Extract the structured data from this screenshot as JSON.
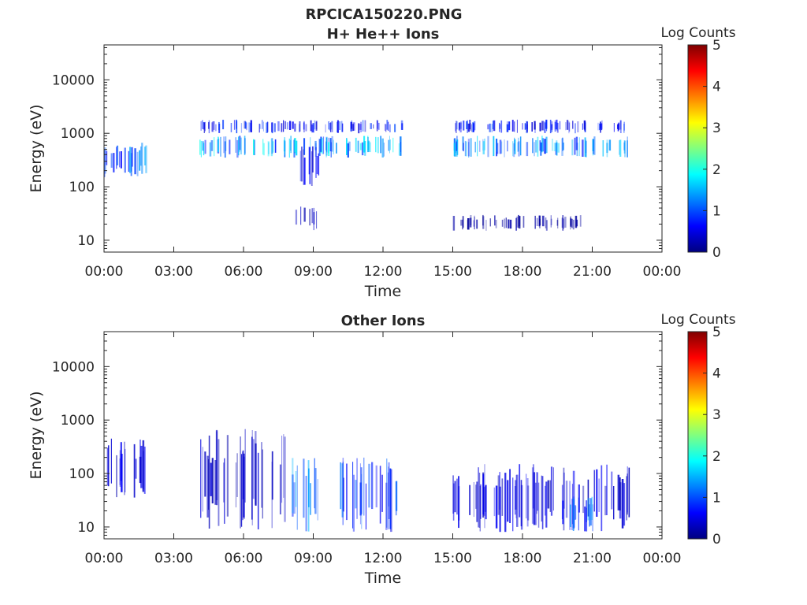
{
  "figure": {
    "title": "RPCICA150220.PNG"
  },
  "chart_data": [
    {
      "type": "heatmap",
      "title": "H+ He++ Ions",
      "xlabel": "Time",
      "ylabel": "Energy (eV)",
      "x_ticks": [
        "00:00",
        "03:00",
        "06:00",
        "09:00",
        "12:00",
        "15:00",
        "18:00",
        "21:00",
        "00:00"
      ],
      "x_tick_hours": [
        0,
        3,
        6,
        9,
        12,
        15,
        18,
        21,
        24
      ],
      "xlim_hours": [
        0,
        24
      ],
      "y_scale": "log",
      "y_ticks": [
        "10",
        "100",
        "1000",
        "10000"
      ],
      "y_tick_values": [
        10,
        100,
        1000,
        10000
      ],
      "ylim": [
        6,
        45000
      ],
      "colorbar": {
        "label": "Log Counts",
        "ticks": [
          "0",
          "1",
          "2",
          "3",
          "4",
          "5"
        ],
        "range": [
          0,
          5
        ],
        "colormap": "jet"
      },
      "data_coverage_hours": [
        [
          0.0,
          1.8
        ],
        [
          4.1,
          12.8
        ],
        [
          15.0,
          22.6
        ]
      ],
      "features": [
        {
          "time_hours": [
            0.0,
            1.8
          ],
          "energy_eV": [
            150,
            700
          ],
          "log_counts": 1.2
        },
        {
          "time_hours": [
            4.1,
            12.8
          ],
          "energy_eV": [
            350,
            900
          ],
          "log_counts": 1.6
        },
        {
          "time_hours": [
            4.1,
            12.8
          ],
          "energy_eV": [
            1000,
            1800
          ],
          "log_counts": 0.8
        },
        {
          "time_hours": [
            8.2,
            9.2
          ],
          "energy_eV": [
            100,
            600
          ],
          "log_counts": 0.6
        },
        {
          "time_hours": [
            15.0,
            22.6
          ],
          "energy_eV": [
            350,
            900
          ],
          "log_counts": 1.4
        },
        {
          "time_hours": [
            15.0,
            22.6
          ],
          "energy_eV": [
            1000,
            1800
          ],
          "log_counts": 0.8
        },
        {
          "time_hours": [
            8.2,
            9.2
          ],
          "energy_eV": [
            15,
            50
          ],
          "log_counts": 0.3
        },
        {
          "time_hours": [
            15.0,
            20.5
          ],
          "energy_eV": [
            15,
            30
          ],
          "log_counts": 0.2
        }
      ]
    },
    {
      "type": "heatmap",
      "title": "Other Ions",
      "xlabel": "Time",
      "ylabel": "Energy (eV)",
      "x_ticks": [
        "00:00",
        "03:00",
        "06:00",
        "09:00",
        "12:00",
        "15:00",
        "18:00",
        "21:00",
        "00:00"
      ],
      "x_tick_hours": [
        0,
        3,
        6,
        9,
        12,
        15,
        18,
        21,
        24
      ],
      "xlim_hours": [
        0,
        24
      ],
      "y_scale": "log",
      "y_ticks": [
        "10",
        "100",
        "1000",
        "10000"
      ],
      "y_tick_values": [
        10,
        100,
        1000,
        10000
      ],
      "ylim": [
        6,
        45000
      ],
      "colorbar": {
        "label": "Log Counts",
        "ticks": [
          "0",
          "1",
          "2",
          "3",
          "4",
          "5"
        ],
        "range": [
          0,
          5
        ],
        "colormap": "jet"
      },
      "data_coverage_hours": [
        [
          0.0,
          1.8
        ],
        [
          4.1,
          12.8
        ],
        [
          15.0,
          22.6
        ]
      ],
      "features": [
        {
          "time_hours": [
            0.0,
            1.8
          ],
          "energy_eV": [
            30,
            500
          ],
          "log_counts": 0.5
        },
        {
          "time_hours": [
            4.1,
            8.0
          ],
          "energy_eV": [
            8,
            700
          ],
          "log_counts": 0.4
        },
        {
          "time_hours": [
            8.0,
            9.3
          ],
          "energy_eV": [
            8,
            200
          ],
          "log_counts": 1.3
        },
        {
          "time_hours": [
            10.0,
            12.6
          ],
          "energy_eV": [
            8,
            200
          ],
          "log_counts": 1.0
        },
        {
          "time_hours": [
            15.0,
            22.6
          ],
          "energy_eV": [
            8,
            150
          ],
          "log_counts": 0.5
        },
        {
          "time_hours": [
            19.5,
            21.0
          ],
          "energy_eV": [
            8,
            40
          ],
          "log_counts": 1.2
        }
      ]
    }
  ]
}
